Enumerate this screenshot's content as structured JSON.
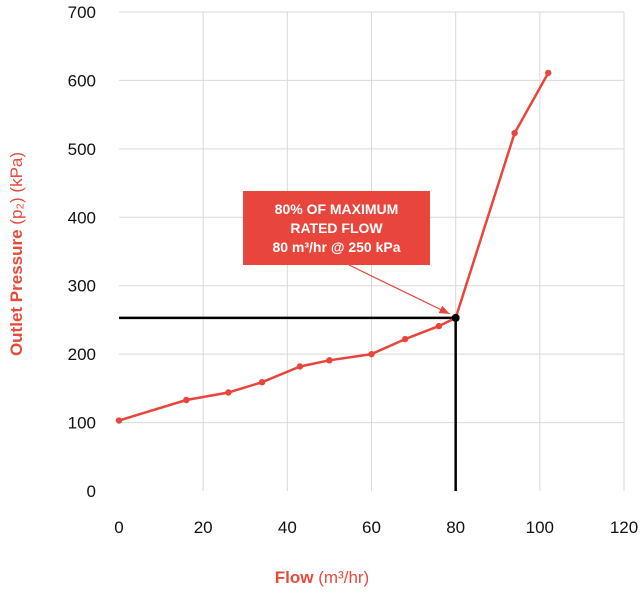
{
  "chart_data": {
    "type": "line",
    "xlabel": "Flow",
    "xlabel_unit": "(m³/hr)",
    "ylabel": "Outlet Pressure",
    "ylabel_symbol": "(p₂)",
    "ylabel_unit": "(kPa)",
    "xlim": [
      0,
      120
    ],
    "ylim": [
      0,
      700
    ],
    "xticks": [
      0,
      20,
      40,
      60,
      80,
      100,
      120
    ],
    "yticks": [
      0,
      100,
      200,
      300,
      400,
      500,
      600,
      700
    ],
    "grid": true,
    "series": [
      {
        "color": "#e8453c",
        "x": [
          0,
          16,
          26,
          34,
          43,
          50,
          60,
          68,
          76,
          80,
          94,
          102
        ],
        "y": [
          103,
          133,
          144,
          159,
          182,
          191,
          200,
          222,
          241,
          253,
          523,
          611
        ]
      }
    ],
    "reference_point": {
      "x": 80,
      "y": 253,
      "color": "#000000"
    },
    "annotation": {
      "lines": [
        "80% OF MAXIMUM",
        "RATED FLOW",
        "80 m³/hr @ 250 kPa"
      ],
      "color": "#e8453c"
    }
  }
}
